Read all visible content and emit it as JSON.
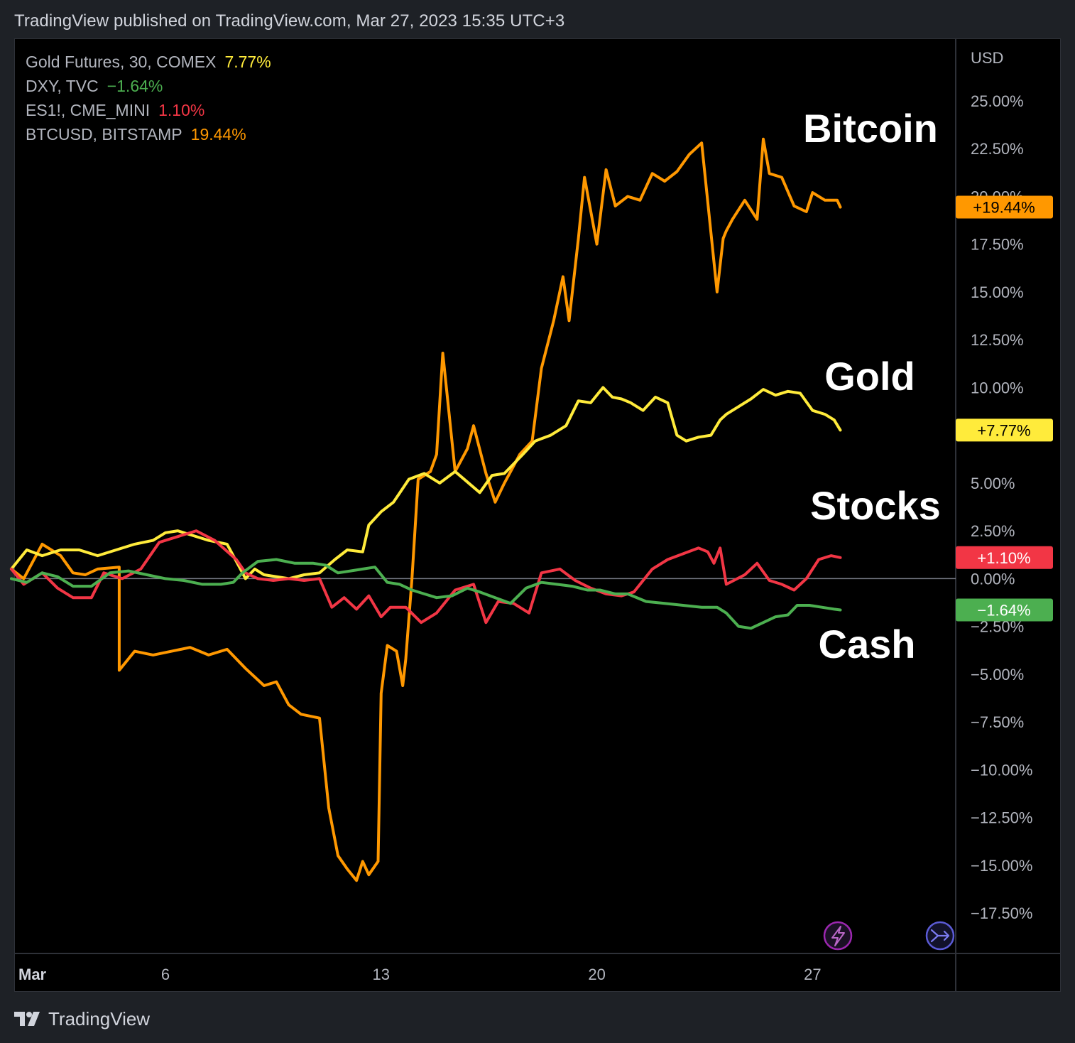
{
  "header": {
    "published_text": "TradingView published on TradingView.com, Mar 27, 2023 15:35 UTC+3"
  },
  "footer": {
    "brand": "TradingView"
  },
  "icons": {
    "lightning": "lightning-icon",
    "jump": "jump-to-realtime-icon",
    "logo": "tradingview-logo-icon"
  },
  "legend": [
    {
      "name": "Gold Futures, 30, COMEX",
      "value": "7.77%",
      "color": "#ffeb3b"
    },
    {
      "name": "DXY, TVC",
      "value": "−1.64%",
      "color": "#4caf50"
    },
    {
      "name": "ES1!, CME_MINI",
      "value": "1.10%",
      "color": "#f23645"
    },
    {
      "name": "BTCUSD, BITSTAMP",
      "value": "19.44%",
      "color": "#ff9800"
    }
  ],
  "chart_data": {
    "type": "line",
    "currency_label": "USD",
    "y_unit": "percent change",
    "ylim": [
      -17.5,
      25
    ],
    "y_ticks": [
      "25.00%",
      "22.50%",
      "20.00%",
      "17.50%",
      "15.00%",
      "12.50%",
      "10.00%",
      "7.50%",
      "5.00%",
      "2.50%",
      "0.00%",
      "−2.50%",
      "−5.00%",
      "−7.50%",
      "−10.00%",
      "−12.50%",
      "−15.00%",
      "−17.50%"
    ],
    "x_ticks": [
      {
        "label": "Mar",
        "day": 1.3
      },
      {
        "label": "6",
        "day": 6
      },
      {
        "label": "13",
        "day": 13
      },
      {
        "label": "20",
        "day": 20
      },
      {
        "label": "27",
        "day": 27
      }
    ],
    "annotations": [
      {
        "text": "Bitcoin",
        "color": "#ffffff"
      },
      {
        "text": "Gold",
        "color": "#ffffff"
      },
      {
        "text": "Stocks",
        "color": "#ffffff"
      },
      {
        "text": "Cash",
        "color": "#ffffff"
      }
    ],
    "series": [
      {
        "color": "#ff9800",
        "last_label": "+19.44%",
        "last_label_text_color": "#000000",
        "x": [
          1.0,
          1.4,
          2.0,
          2.6,
          3.0,
          3.4,
          3.8,
          4.5,
          4.5,
          5.0,
          5.6,
          6.2,
          6.8,
          7.4,
          8.0,
          8.6,
          9.2,
          9.6,
          10.0,
          10.4,
          11.0,
          11.3,
          11.6,
          11.9,
          12.2,
          12.4,
          12.6,
          12.9,
          13.0,
          13.2,
          13.5,
          13.7,
          13.8,
          14.0,
          14.2,
          14.6,
          14.8,
          15.0,
          15.4,
          15.8,
          16.0,
          16.4,
          16.7,
          17.0,
          17.5,
          17.9,
          18.2,
          18.6,
          18.9,
          19.1,
          19.4,
          19.6,
          20.0,
          20.3,
          20.6,
          21.0,
          21.4,
          21.8,
          22.2,
          22.6,
          23.0,
          23.4,
          23.9,
          24.1,
          24.2,
          24.4,
          24.8,
          25.2,
          25.4,
          25.6,
          26.0,
          26.4,
          26.8,
          27.0,
          27.4,
          27.8,
          27.9
        ],
        "values": [
          0.5,
          0.0,
          1.8,
          1.2,
          0.3,
          0.2,
          0.5,
          0.6,
          -4.8,
          -3.8,
          -4.0,
          -3.8,
          -3.6,
          -4.0,
          -3.7,
          -4.7,
          -5.6,
          -5.4,
          -6.6,
          -7.1,
          -7.3,
          -12.0,
          -14.5,
          -15.2,
          -15.8,
          -14.8,
          -15.5,
          -14.8,
          -6.0,
          -3.5,
          -3.8,
          -5.6,
          -4.2,
          0.0,
          5.2,
          5.6,
          6.5,
          11.8,
          5.6,
          6.8,
          8.0,
          5.5,
          4.0,
          5.0,
          6.5,
          7.2,
          11.0,
          13.5,
          15.8,
          13.5,
          17.8,
          21.0,
          17.5,
          21.4,
          19.5,
          20.0,
          19.8,
          21.2,
          20.8,
          21.3,
          22.2,
          22.8,
          15.0,
          17.8,
          18.2,
          18.8,
          19.8,
          18.8,
          23.0,
          21.2,
          21.0,
          19.5,
          19.2,
          20.2,
          19.8,
          19.8,
          19.44
        ]
      },
      {
        "color": "#ffeb3b",
        "last_label": "+7.77%",
        "last_label_text_color": "#000000",
        "x": [
          1.0,
          1.5,
          2.0,
          2.6,
          3.2,
          3.8,
          4.4,
          5.0,
          5.6,
          6.0,
          6.4,
          6.8,
          7.4,
          8.0,
          8.4,
          8.6,
          8.9,
          9.2,
          10.0,
          10.5,
          11.0,
          11.5,
          11.9,
          12.4,
          12.6,
          13.0,
          13.4,
          13.9,
          14.4,
          14.9,
          15.4,
          16.2,
          16.6,
          17.0,
          17.6,
          18.0,
          18.5,
          19.0,
          19.4,
          19.8,
          20.2,
          20.5,
          20.8,
          21.1,
          21.5,
          21.9,
          22.3,
          22.6,
          22.9,
          23.3,
          23.7,
          24.0,
          24.2,
          24.6,
          25.0,
          25.4,
          25.8,
          26.2,
          26.6,
          27.0,
          27.4,
          27.7,
          27.9
        ],
        "values": [
          0.5,
          1.5,
          1.2,
          1.5,
          1.5,
          1.2,
          1.5,
          1.8,
          2.0,
          2.4,
          2.5,
          2.3,
          2.0,
          1.8,
          0.6,
          0.0,
          0.5,
          0.2,
          0.0,
          0.2,
          0.3,
          1.0,
          1.5,
          1.4,
          2.8,
          3.5,
          4.0,
          5.2,
          5.5,
          5.0,
          5.6,
          4.5,
          5.4,
          5.5,
          6.5,
          7.2,
          7.5,
          8.0,
          9.3,
          9.2,
          10.0,
          9.5,
          9.4,
          9.2,
          8.8,
          9.5,
          9.2,
          7.5,
          7.2,
          7.4,
          7.5,
          8.3,
          8.6,
          9.0,
          9.4,
          9.9,
          9.6,
          9.8,
          9.7,
          8.8,
          8.6,
          8.3,
          7.77
        ]
      },
      {
        "color": "#f23645",
        "last_label": "+1.10%",
        "last_label_text_color": "#ffffff",
        "x": [
          1.0,
          1.4,
          2.0,
          2.5,
          3.0,
          3.6,
          4.0,
          4.6,
          5.2,
          5.8,
          6.4,
          7.0,
          7.6,
          8.3,
          8.6,
          9.0,
          9.5,
          10.0,
          10.5,
          11.0,
          11.4,
          11.8,
          12.2,
          12.6,
          13.0,
          13.3,
          13.8,
          14.3,
          14.8,
          15.4,
          16.0,
          16.4,
          16.8,
          17.3,
          17.8,
          18.2,
          18.8,
          19.3,
          19.8,
          20.3,
          20.8,
          21.2,
          21.8,
          22.3,
          22.8,
          23.3,
          23.6,
          23.8,
          24.0,
          24.2,
          24.8,
          25.2,
          25.6,
          26.0,
          26.4,
          26.8,
          27.2,
          27.6,
          27.9
        ],
        "values": [
          0.5,
          -0.3,
          0.3,
          -0.5,
          -1.0,
          -1.0,
          0.3,
          0.0,
          0.5,
          1.9,
          2.2,
          2.5,
          2.0,
          1.0,
          0.3,
          0.0,
          -0.1,
          0.0,
          -0.1,
          0.0,
          -1.5,
          -1.0,
          -1.6,
          -0.9,
          -2.0,
          -1.5,
          -1.5,
          -2.3,
          -1.8,
          -0.6,
          -0.3,
          -2.3,
          -1.2,
          -1.3,
          -1.8,
          0.3,
          0.5,
          -0.1,
          -0.5,
          -0.8,
          -0.9,
          -0.7,
          0.5,
          1.0,
          1.3,
          1.6,
          1.4,
          0.8,
          1.6,
          -0.3,
          0.2,
          0.8,
          -0.1,
          -0.3,
          -0.6,
          0.0,
          1.0,
          1.2,
          1.1
        ]
      },
      {
        "color": "#4caf50",
        "last_label": "−1.64%",
        "last_label_text_color": "#ffffff",
        "x": [
          1.0,
          1.5,
          2.0,
          2.5,
          3.0,
          3.6,
          4.2,
          4.8,
          5.4,
          6.0,
          6.6,
          7.2,
          7.8,
          8.2,
          8.5,
          9.0,
          9.6,
          10.2,
          10.8,
          11.2,
          11.6,
          12.0,
          12.4,
          12.8,
          13.2,
          13.6,
          14.0,
          14.4,
          14.8,
          15.3,
          15.8,
          16.2,
          16.7,
          17.2,
          17.7,
          18.2,
          18.7,
          19.2,
          19.7,
          20.1,
          20.6,
          21.0,
          21.6,
          22.2,
          22.8,
          23.4,
          23.9,
          24.2,
          24.6,
          25.0,
          25.4,
          25.8,
          26.2,
          26.5,
          26.9,
          27.3,
          27.7,
          27.9
        ],
        "values": [
          0.0,
          -0.2,
          0.3,
          0.1,
          -0.4,
          -0.4,
          0.3,
          0.4,
          0.2,
          0.0,
          -0.1,
          -0.3,
          -0.3,
          -0.2,
          0.3,
          0.9,
          1.0,
          0.8,
          0.8,
          0.7,
          0.3,
          0.4,
          0.5,
          0.6,
          -0.2,
          -0.3,
          -0.6,
          -0.8,
          -1.0,
          -0.9,
          -0.5,
          -0.7,
          -1.0,
          -1.3,
          -0.5,
          -0.2,
          -0.3,
          -0.4,
          -0.6,
          -0.6,
          -0.8,
          -0.8,
          -1.2,
          -1.3,
          -1.4,
          -1.5,
          -1.5,
          -1.8,
          -2.5,
          -2.6,
          -2.3,
          -2.0,
          -1.9,
          -1.4,
          -1.4,
          -1.5,
          -1.6,
          -1.64
        ]
      }
    ]
  }
}
